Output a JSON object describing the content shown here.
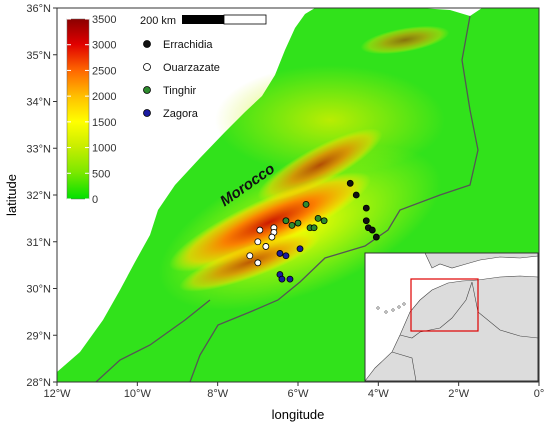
{
  "map": {
    "country_label": "Morocco",
    "axes": {
      "xlabel": "longitude",
      "ylabel": "latitude",
      "x_range": [
        -12,
        0
      ],
      "y_range": [
        28,
        36
      ],
      "x_ticks": [
        {
          "value": -12,
          "label": "12°W"
        },
        {
          "value": -10,
          "label": "10°W"
        },
        {
          "value": -8,
          "label": "8°W"
        },
        {
          "value": -6,
          "label": "6°W"
        },
        {
          "value": -4,
          "label": "4°W"
        },
        {
          "value": -2,
          "label": "2°W"
        },
        {
          "value": 0,
          "label": "0°"
        }
      ],
      "y_ticks": [
        {
          "value": 28,
          "label": "28°N"
        },
        {
          "value": 29,
          "label": "29°N"
        },
        {
          "value": 30,
          "label": "30°N"
        },
        {
          "value": 31,
          "label": "31°N"
        },
        {
          "value": 32,
          "label": "32°N"
        },
        {
          "value": 33,
          "label": "33°N"
        },
        {
          "value": 34,
          "label": "34°N"
        },
        {
          "value": 35,
          "label": "35°N"
        },
        {
          "value": 36,
          "label": "36°N"
        }
      ]
    },
    "colorbar": {
      "min": 0,
      "max": 3500,
      "ticks": [
        "0",
        "500",
        "1000",
        "1500",
        "2000",
        "2500",
        "3000",
        "3500"
      ],
      "colors": [
        "#00e000",
        "#7de800",
        "#ccee00",
        "#ffff00",
        "#ffc000",
        "#ff6a00",
        "#e00000",
        "#8b0000"
      ]
    },
    "scale_bar": {
      "label": "200 km"
    },
    "legend": [
      {
        "name": "Errachidia",
        "color": "#111111"
      },
      {
        "name": "Ouarzazate",
        "color": "#ffffff"
      },
      {
        "name": "Tinghir",
        "color": "#2e8b2e"
      },
      {
        "name": "Zagora",
        "color": "#1a1aa0"
      }
    ],
    "stations": {
      "Errachidia": [
        [
          -4.7,
          32.25
        ],
        [
          -4.55,
          32.0
        ],
        [
          -4.3,
          31.72
        ],
        [
          -4.3,
          31.45
        ],
        [
          -4.25,
          31.3
        ],
        [
          -4.15,
          31.25
        ],
        [
          -4.05,
          31.1
        ]
      ],
      "Ouarzazate": [
        [
          -6.95,
          31.25
        ],
        [
          -6.6,
          31.3
        ],
        [
          -6.6,
          31.2
        ],
        [
          -6.65,
          31.1
        ],
        [
          -7.0,
          31.0
        ],
        [
          -6.8,
          30.9
        ],
        [
          -7.2,
          30.7
        ],
        [
          -7.0,
          30.55
        ]
      ],
      "Tinghir": [
        [
          -6.3,
          31.45
        ],
        [
          -6.0,
          31.4
        ],
        [
          -5.7,
          31.3
        ],
        [
          -5.6,
          31.3
        ],
        [
          -5.35,
          31.45
        ],
        [
          -5.5,
          31.5
        ],
        [
          -5.8,
          31.8
        ],
        [
          -6.15,
          31.35
        ]
      ],
      "Zagora": [
        [
          -6.45,
          30.75
        ],
        [
          -6.3,
          30.7
        ],
        [
          -5.95,
          30.85
        ],
        [
          -6.45,
          30.3
        ],
        [
          -6.2,
          30.2
        ],
        [
          -6.4,
          30.2
        ]
      ]
    }
  }
}
